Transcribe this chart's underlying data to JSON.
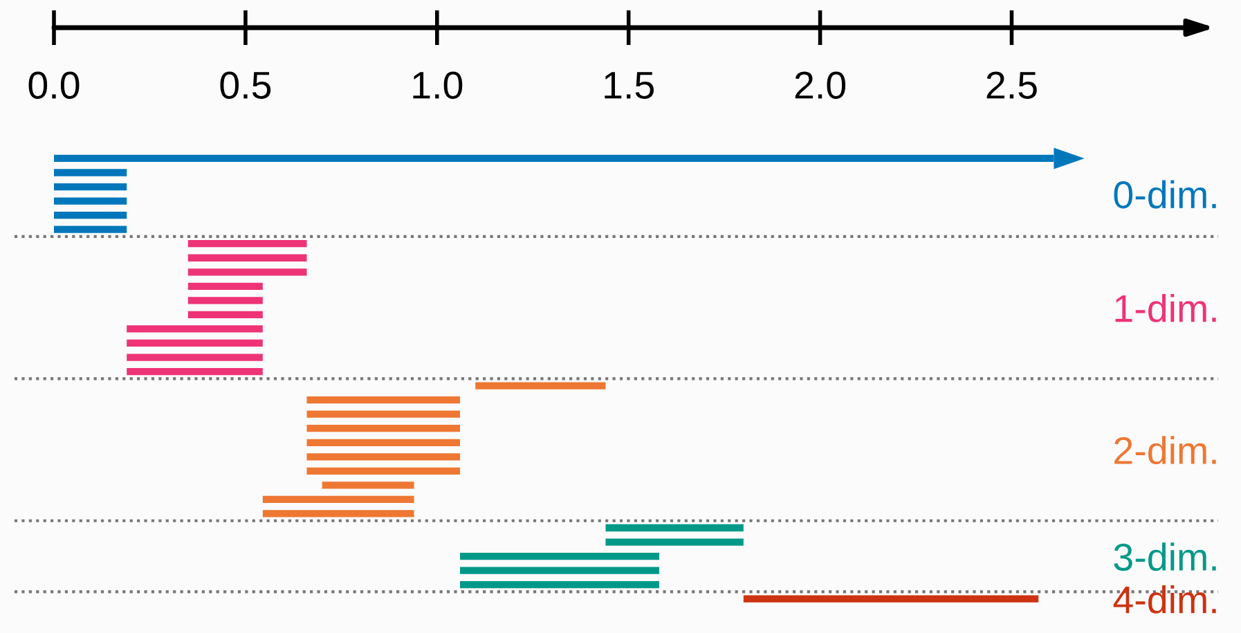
{
  "chart_data": {
    "type": "bar",
    "orientation": "horizontal",
    "categories": [
      null,
      null,
      null,
      null,
      null,
      null,
      null,
      null,
      null,
      null,
      null,
      null,
      null,
      null,
      null,
      null,
      null,
      null,
      null,
      null,
      null,
      null,
      null,
      null,
      null,
      null,
      null,
      null,
      null,
      null,
      null,
      null
    ],
    "base": [
      0,
      0,
      0,
      0,
      0,
      0,
      0.35,
      0.35,
      0.35,
      0.35,
      0.35,
      0.35,
      0.19,
      0.19,
      0.19,
      0.19,
      1.1,
      0.66,
      0.66,
      0.66,
      0.66,
      0.66,
      0.66,
      0.7,
      0.545,
      0.545,
      1.44,
      1.44,
      1.06,
      1.06,
      1.06,
      1.8
    ],
    "values": [
      2.61,
      0.19,
      0.19,
      0.19,
      0.19,
      0.19,
      0.31,
      0.31,
      0.31,
      0.195,
      0.195,
      0.195,
      0.355,
      0.355,
      0.355,
      0.355,
      0.34,
      0.4,
      0.4,
      0.4,
      0.4,
      0.4,
      0.4,
      0.24,
      0.395,
      0.395,
      0.36,
      0.36,
      0.52,
      0.52,
      0.52,
      0.77
    ],
    "colors": [
      "#0077bb",
      "#0077bb",
      "#0077bb",
      "#0077bb",
      "#0077bb",
      "#0077bb",
      "#ee3377",
      "#ee3377",
      "#ee3377",
      "#ee3377",
      "#ee3377",
      "#ee3377",
      "#ee3377",
      "#ee3377",
      "#ee3377",
      "#ee3377",
      "#ee7733",
      "#ee7733",
      "#ee7733",
      "#ee7733",
      "#ee7733",
      "#ee7733",
      "#ee7733",
      "#ee7733",
      "#ee7733",
      "#ee7733",
      "#009988",
      "#009988",
      "#009988",
      "#009988",
      "#009988",
      "#cc3311"
    ],
    "annotations": [
      "0-dim.",
      "1-dim.",
      "2-dim.",
      "3-dim.",
      "4-dim."
    ],
    "xlim": [
      0,
      3.03
    ],
    "xticks": [
      {
        "value": 0,
        "label": "0.0"
      },
      {
        "value": 0.5,
        "label": "0.5"
      },
      {
        "value": 1,
        "label": "1.0"
      },
      {
        "value": 1.5,
        "label": "1.5"
      },
      {
        "value": 2,
        "label": "2.0"
      },
      {
        "value": 2.5,
        "label": "2.5"
      }
    ]
  }
}
